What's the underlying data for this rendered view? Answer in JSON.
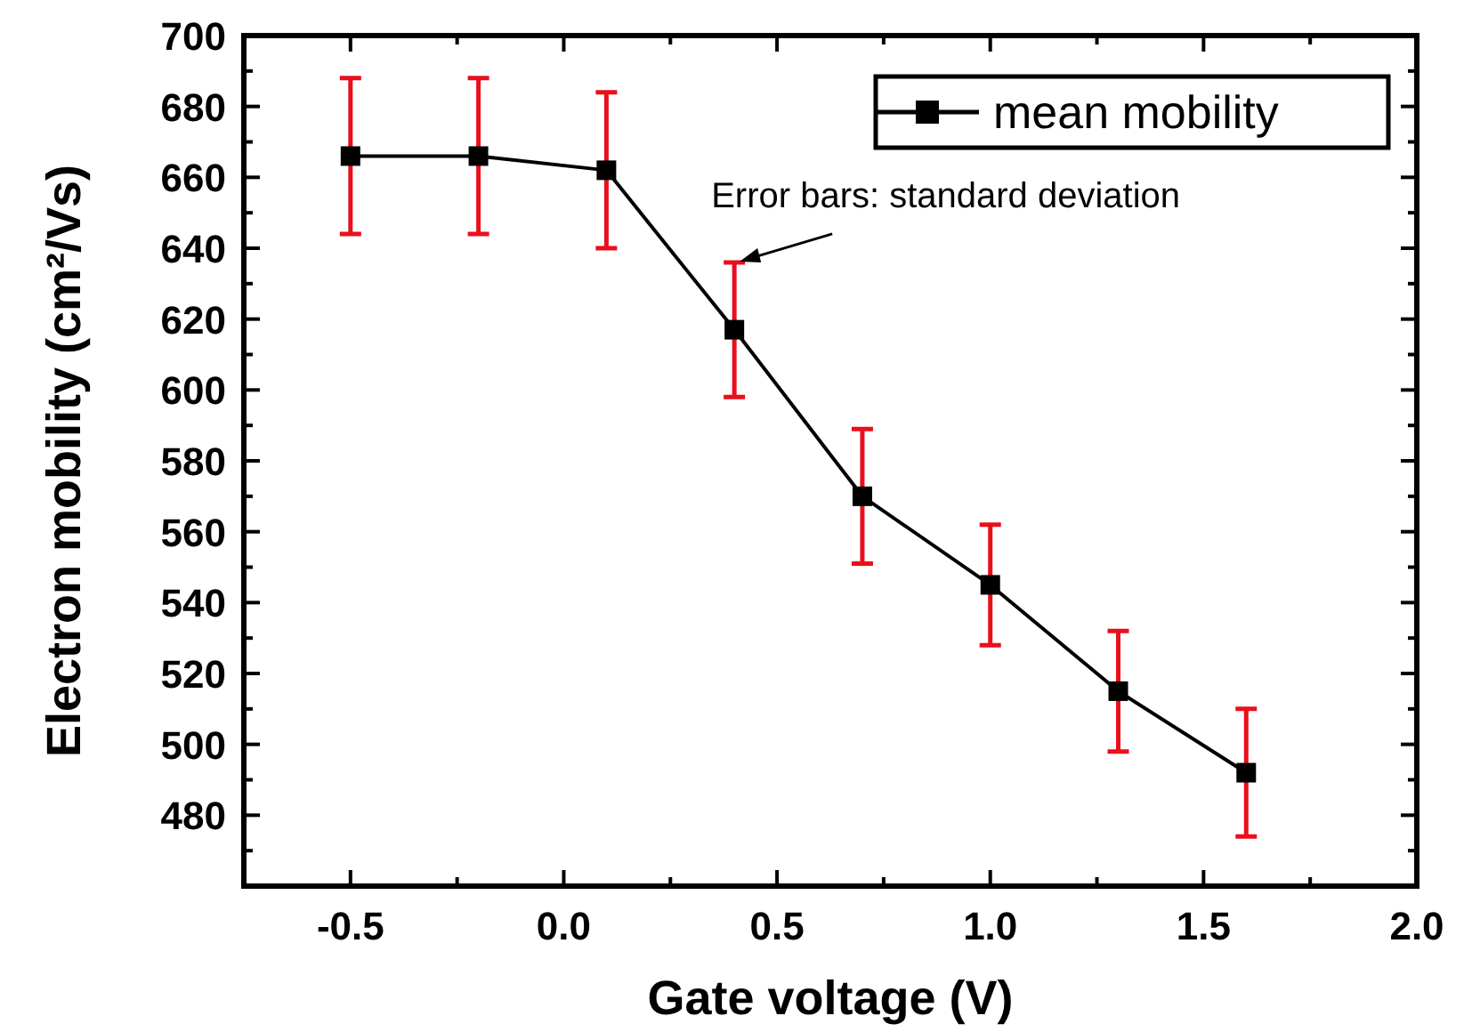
{
  "chart_data": {
    "type": "line",
    "xlabel": "Gate voltage (V)",
    "ylabel": "Electron mobility (cm²/Vs)",
    "x": [
      -0.5,
      -0.2,
      0.1,
      0.4,
      0.7,
      1.0,
      1.3,
      1.6
    ],
    "series": [
      {
        "name": "mean mobility",
        "color": "#000000",
        "values": [
          666,
          666,
          662,
          617,
          570,
          545,
          515,
          492
        ],
        "errors": [
          22,
          22,
          22,
          19,
          19,
          17,
          17,
          18
        ]
      }
    ],
    "xlim": [
      -0.75,
      2.0
    ],
    "xticks": [
      -0.5,
      {
        "value": -0.25,
        "label": null
      },
      {
        "value": 0,
        "label": "0.0"
      },
      {
        "value": 0.25,
        "label": null
      },
      0.5,
      {
        "value": 0.75,
        "label": null
      },
      {
        "value": 1,
        "label": "1.0"
      },
      {
        "value": 1.25,
        "label": null
      },
      1.5,
      {
        "value": 1.75,
        "label": null
      },
      {
        "value": 2,
        "label": "2.0"
      }
    ],
    "ylim": [
      460,
      700
    ],
    "yticks": [
      {
        "value": 470,
        "label": null
      },
      480,
      {
        "value": 490,
        "label": null
      },
      500,
      {
        "value": 510,
        "label": null
      },
      520,
      {
        "value": 530,
        "label": null
      },
      540,
      {
        "value": 550,
        "label": null
      },
      560,
      {
        "value": 570,
        "label": null
      },
      580,
      {
        "value": 590,
        "label": null
      },
      600,
      {
        "value": 610,
        "label": null
      },
      620,
      {
        "value": 630,
        "label": null
      },
      640,
      {
        "value": 650,
        "label": null
      },
      660,
      {
        "value": 670,
        "label": null
      },
      680,
      {
        "value": 690,
        "label": null
      },
      700
    ],
    "marker": "square",
    "line_style": "solid",
    "grid": false,
    "legend": "top right",
    "annotations": [
      {
        "text": "Error bars: standard deviation",
        "x": 0.4,
        "y": 635
      }
    ]
  }
}
